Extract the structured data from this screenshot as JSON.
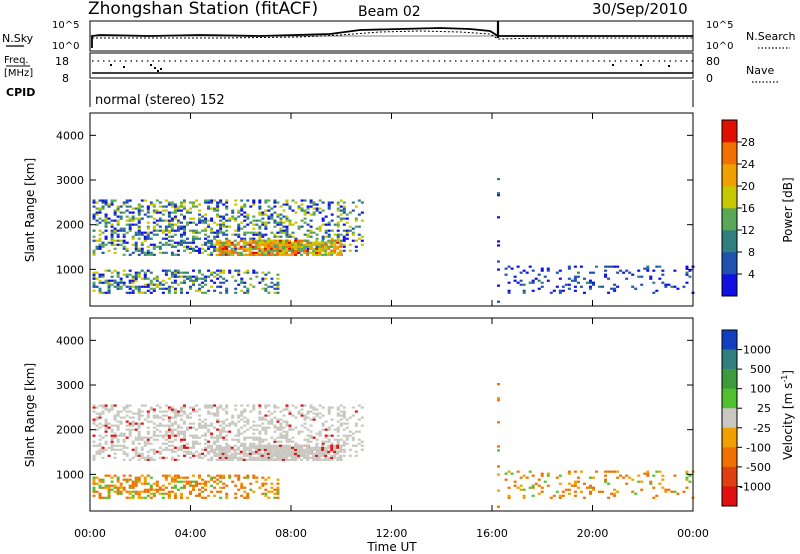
{
  "header": {
    "station": "Zhongshan Station (fitACF)",
    "beam": "Beam 02",
    "date": "30/Sep/2010"
  },
  "strip": {
    "nsky_label": "N.Sky",
    "nsky_ticks": [
      "10^5",
      "10^0"
    ],
    "nsearch_label": "N.Search",
    "nsearch_ticks": [
      "10^5",
      "10^0"
    ],
    "freq_label_1": "Freq.",
    "freq_label_2": "[MHz]",
    "freq_ticks": [
      "18",
      "8"
    ],
    "nave_label": "Nave",
    "nave_ticks": [
      "80",
      "0"
    ],
    "cpid_label": "CPID",
    "cpid_text": "normal (stereo) 152"
  },
  "chart_data": [
    {
      "type": "heatmap",
      "panel": "power",
      "ylabel": "Slant Range [km]",
      "ylim": [
        180,
        4500
      ],
      "yticks": [
        1000,
        2000,
        3000,
        4000
      ],
      "xlim_hours": [
        0,
        24
      ],
      "colorbar": {
        "title": "Power [dB]",
        "ticks": [
          "4",
          "8",
          "12",
          "16",
          "20",
          "24",
          "28"
        ],
        "colors": [
          "#1010e0",
          "#2050b0",
          "#2f7f7f",
          "#58a858",
          "#c8c800",
          "#f0a000",
          "#f07000",
          "#e01000"
        ]
      },
      "echo_regions": [
        {
          "t0": 0.1,
          "t1": 10.8,
          "r0": 1350,
          "r1": 2600,
          "level": "mixed"
        },
        {
          "t0": 5.0,
          "t1": 10.0,
          "r0": 1350,
          "r1": 1700,
          "level": "high"
        },
        {
          "t0": 0.1,
          "t1": 7.5,
          "r0": 500,
          "r1": 1000,
          "level": "mixed"
        },
        {
          "t0": 16.2,
          "t1": 16.3,
          "r0": 300,
          "r1": 3100,
          "level": "low"
        },
        {
          "t0": 16.5,
          "t1": 24.0,
          "r0": 500,
          "r1": 1100,
          "level": "low"
        }
      ]
    },
    {
      "type": "heatmap",
      "panel": "velocity",
      "ylabel": "Slant Range [km]",
      "ylim": [
        180,
        4500
      ],
      "yticks": [
        1000,
        2000,
        3000,
        4000
      ],
      "xlabel": "Time UT",
      "xticks": [
        "00:00",
        "04:00",
        "08:00",
        "12:00",
        "16:00",
        "20:00",
        "00:00"
      ],
      "colorbar": {
        "title": "Velocity [m s",
        "title_sup": "-1",
        "ticks": [
          "1000",
          "500",
          "100",
          "25",
          "-25",
          "-100",
          "-500",
          "-1000"
        ],
        "colors": [
          "#1040c0",
          "#2f7f7f",
          "#3c9c3c",
          "#50c030",
          "#c8c8c0",
          "#f0a000",
          "#f07000",
          "#e04010",
          "#e01010"
        ]
      }
    }
  ]
}
